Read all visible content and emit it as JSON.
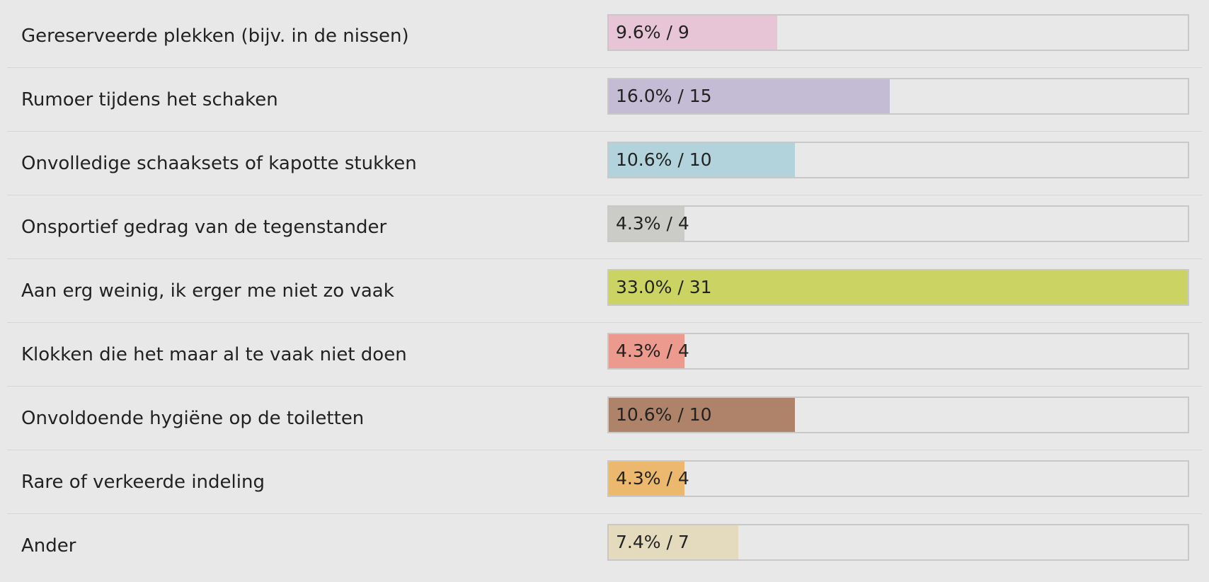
{
  "chart_data": {
    "type": "bar",
    "orientation": "horizontal",
    "categories": [
      "Gereserveerde plekken (bijv. in de nissen)",
      "Rumoer tijdens het schaken",
      "Onvolledige schaaksets of kapotte stukken",
      "Onsportief gedrag van de tegenstander",
      "Aan erg weinig, ik erger me niet zo vaak",
      "Klokken die het maar al te vaak niet doen",
      "Onvoldoende hygiëne op de toiletten",
      "Rare of verkeerde indeling",
      "Ander"
    ],
    "percent": [
      9.6,
      16.0,
      10.6,
      4.3,
      33.0,
      4.3,
      10.6,
      4.3,
      7.4
    ],
    "counts": [
      9,
      15,
      10,
      4,
      31,
      4,
      10,
      4,
      7
    ],
    "value_labels": [
      "9.6% / 9",
      "16.0% / 15",
      "10.6% / 10",
      "4.3% / 4",
      "33.0% / 31",
      "4.3% / 4",
      "10.6% / 10",
      "4.3% / 4",
      "7.4% / 7"
    ],
    "colors": [
      "#e8c5d6",
      "#c4bbd5",
      "#b2d3dc",
      "#cbcbc8",
      "#cbd463",
      "#ec9a8e",
      "#ae836a",
      "#ebb86d",
      "#e4dabd"
    ],
    "max_percent": 33.0,
    "track_color": "#e8e8e8"
  }
}
